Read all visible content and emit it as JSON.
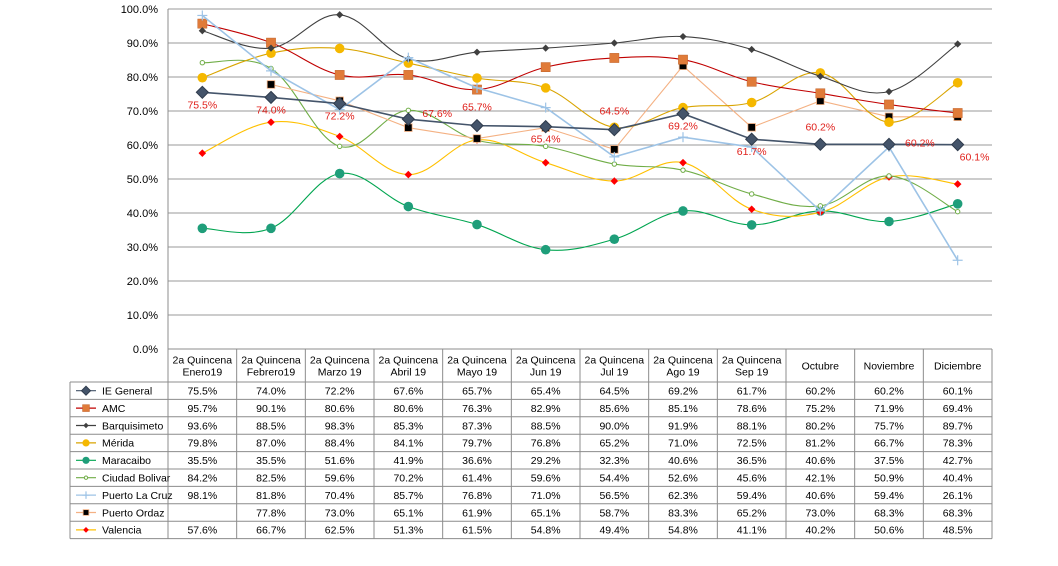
{
  "chart_data": {
    "type": "line",
    "categories": [
      [
        "2a Quincena",
        "Enero19"
      ],
      [
        "2a Quincena",
        "Febrero19"
      ],
      [
        "2a Quincena",
        "Marzo 19"
      ],
      [
        "2a Quincena",
        "Abril 19"
      ],
      [
        "2a Quincena",
        "Mayo 19"
      ],
      [
        "2a Quincena",
        "Jun 19"
      ],
      [
        "2a Quincena",
        "Jul 19"
      ],
      [
        "2a Quincena",
        "Ago 19"
      ],
      [
        "2a Quincena",
        "Sep 19"
      ],
      [
        "Octubre"
      ],
      [
        "Noviembre"
      ],
      [
        "Diciembre"
      ]
    ],
    "ylim": [
      0,
      100
    ],
    "y_ticks": [
      "0.0%",
      "10.0%",
      "20.0%",
      "30.0%",
      "40.0%",
      "50.0%",
      "60.0%",
      "70.0%",
      "80.0%",
      "90.0%",
      "100.0%"
    ],
    "grid": true,
    "legend": "data-table",
    "data_labels_series": "IE General",
    "data_labels": [
      "75.5%",
      "74.0%",
      "72.2%",
      "67.6%",
      "65.7%",
      "65.4%",
      "64.5%",
      "69.2%",
      "61.7%",
      "60.2%",
      "60.2%",
      "60.1%"
    ],
    "series": [
      {
        "name": "IE General",
        "color": "#44546a",
        "marker": "diamond",
        "smooth": false,
        "values": [
          75.5,
          74.0,
          72.2,
          67.6,
          65.7,
          65.4,
          64.5,
          69.2,
          61.7,
          60.2,
          60.2,
          60.1
        ],
        "labels": [
          "75.5%",
          "74.0%",
          "72.2%",
          "67.6%",
          "65.7%",
          "65.4%",
          "64.5%",
          "69.2%",
          "61.7%",
          "60.2%",
          "60.2%",
          "60.1%"
        ]
      },
      {
        "name": "AMC",
        "color": "#c00000",
        "marker": "square",
        "marker_color": "#e07b39",
        "smooth": true,
        "values": [
          95.7,
          90.1,
          80.6,
          80.6,
          76.3,
          82.9,
          85.6,
          85.1,
          78.6,
          75.2,
          71.9,
          69.4
        ],
        "labels": [
          "95.7%",
          "90.1%",
          "80.6%",
          "80.6%",
          "76.3%",
          "82.9%",
          "85.6%",
          "85.1%",
          "78.6%",
          "75.2%",
          "71.9%",
          "69.4%"
        ]
      },
      {
        "name": "Barquisimeto",
        "color": "#404040",
        "marker": "diamond-small",
        "smooth": true,
        "values": [
          93.6,
          88.5,
          98.3,
          85.3,
          87.3,
          88.5,
          90.0,
          91.9,
          88.1,
          80.2,
          75.7,
          89.7
        ],
        "labels": [
          "93.6%",
          "88.5%",
          "98.3%",
          "85.3%",
          "87.3%",
          "88.5%",
          "90.0%",
          "91.9%",
          "88.1%",
          "80.2%",
          "75.7%",
          "89.7%"
        ]
      },
      {
        "name": "Mérida",
        "color": "#d9a400",
        "marker": "circle",
        "marker_color": "#f5b800",
        "smooth": true,
        "values": [
          79.8,
          87.0,
          88.4,
          84.1,
          79.7,
          76.8,
          65.2,
          71.0,
          72.5,
          81.2,
          66.7,
          78.3
        ],
        "labels": [
          "79.8%",
          "87.0%",
          "88.4%",
          "84.1%",
          "79.7%",
          "76.8%",
          "65.2%",
          "71.0%",
          "72.5%",
          "81.2%",
          "66.7%",
          "78.3%"
        ]
      },
      {
        "name": "Maracaibo",
        "color": "#00a550",
        "marker": "circle",
        "marker_color": "#1f9e7a",
        "smooth": true,
        "values": [
          35.5,
          35.5,
          51.6,
          41.9,
          36.6,
          29.2,
          32.3,
          40.6,
          36.5,
          40.6,
          37.5,
          42.7
        ],
        "labels": [
          "35.5%",
          "35.5%",
          "51.6%",
          "41.9%",
          "36.6%",
          "29.2%",
          "32.3%",
          "40.6%",
          "36.5%",
          "40.6%",
          "37.5%",
          "42.7%"
        ]
      },
      {
        "name": "Ciudad Bolivar",
        "color": "#70ad47",
        "marker": "circle-small",
        "marker_color": "#92d050",
        "smooth": true,
        "values": [
          84.2,
          82.5,
          59.6,
          70.2,
          61.4,
          59.6,
          54.4,
          52.6,
          45.6,
          42.1,
          50.9,
          40.4
        ],
        "labels": [
          "84.2%",
          "82.5%",
          "59.6%",
          "70.2%",
          "61.4%",
          "59.6%",
          "54.4%",
          "52.6%",
          "45.6%",
          "42.1%",
          "50.9%",
          "40.4%"
        ]
      },
      {
        "name": "Puerto La Cruz",
        "color": "#9dc3e6",
        "marker": "plus",
        "smooth": false,
        "values": [
          98.1,
          81.8,
          70.4,
          85.7,
          76.8,
          71.0,
          56.5,
          62.3,
          59.4,
          40.6,
          59.4,
          26.1
        ],
        "labels": [
          "98.1%",
          "81.8%",
          "70.4%",
          "85.7%",
          "76.8%",
          "71.0%",
          "56.5%",
          "62.3%",
          "59.4%",
          "40.6%",
          "59.4%",
          "26.1%"
        ]
      },
      {
        "name": "Puerto Ordaz",
        "color": "#f4b183",
        "marker": "square-black",
        "marker_color": "#000000",
        "smooth": false,
        "values": [
          null,
          77.8,
          73.0,
          65.1,
          61.9,
          65.1,
          58.7,
          83.3,
          65.2,
          73.0,
          68.3,
          68.3
        ],
        "labels": [
          "",
          "77.8%",
          "73.0%",
          "65.1%",
          "61.9%",
          "65.1%",
          "58.7%",
          "83.3%",
          "65.2%",
          "73.0%",
          "68.3%",
          "68.3%"
        ]
      },
      {
        "name": "Valencia",
        "color": "#ffc000",
        "marker": "diamond-red",
        "marker_color": "#ff0000",
        "smooth": true,
        "values": [
          57.6,
          66.7,
          62.5,
          51.3,
          61.5,
          54.8,
          49.4,
          54.8,
          41.1,
          40.2,
          50.6,
          48.5
        ],
        "labels": [
          "57.6%",
          "66.7%",
          "62.5%",
          "51.3%",
          "61.5%",
          "54.8%",
          "49.4%",
          "54.8%",
          "41.1%",
          "40.2%",
          "50.6%",
          "48.5%"
        ]
      }
    ]
  }
}
